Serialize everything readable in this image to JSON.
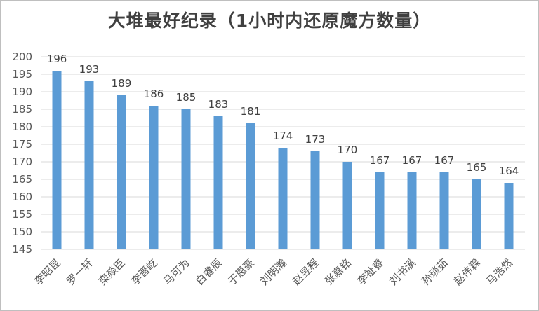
{
  "chart_data": {
    "type": "bar",
    "title": "大堆最好纪录（1小时内还原魔方数量）",
    "xlabel": "",
    "ylabel": "",
    "categories": [
      "李昭昆",
      "罗一轩",
      "栾燚臣",
      "李晋屹",
      "马可为",
      "白睿辰",
      "于恩豪",
      "刘明瀚",
      "赵昱程",
      "张嘉铭",
      "李祉睿",
      "刘书溪",
      "孙琰茹",
      "赵伟霖",
      "马浩然"
    ],
    "values": [
      196,
      193,
      189,
      186,
      185,
      183,
      181,
      174,
      173,
      170,
      167,
      167,
      167,
      165,
      164
    ],
    "ylim": [
      145,
      200
    ],
    "yticks": [
      145,
      150,
      155,
      160,
      165,
      170,
      175,
      180,
      185,
      190,
      195,
      200
    ],
    "grid": true,
    "bar_color": "#5b9bd5",
    "grid_color": "#d9d9d9"
  }
}
